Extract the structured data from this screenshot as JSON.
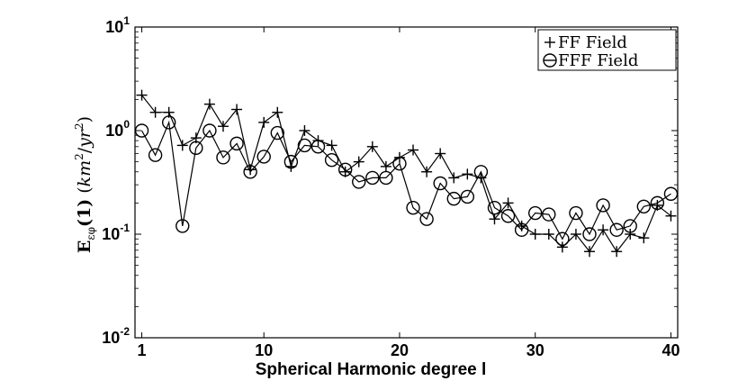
{
  "chart_data": {
    "type": "line",
    "xlabel": "Spherical Harmonic degree l",
    "ylabel": "E_{εφ}(1) (km²/yr²)",
    "ylabel_parts": {
      "E": "E",
      "sub": "ε",
      "sub_accent": "φ",
      "arg": "(1)",
      "unit_open": "(",
      "km": "km",
      "exp1": "2",
      "slash": "/",
      "yr": "yr",
      "exp2": "2",
      "unit_close": ")"
    },
    "xlim": [
      0.5,
      40.5
    ],
    "ylim": [
      0.01,
      10
    ],
    "yscale": "log",
    "xticks": [
      1,
      10,
      20,
      30,
      40
    ],
    "xtick_labels": [
      "1",
      "10",
      "20",
      "30",
      "40"
    ],
    "yticks": [
      0.01,
      0.1,
      1,
      10
    ],
    "ytick_labels": [
      {
        "base": "10",
        "exp": "-2"
      },
      {
        "base": "10",
        "exp": "-1"
      },
      {
        "base": "10",
        "exp": "0"
      },
      {
        "base": "10",
        "exp": "1"
      }
    ],
    "grid": false,
    "legend": "top-right",
    "x": [
      1,
      2,
      3,
      4,
      5,
      6,
      7,
      8,
      9,
      10,
      11,
      12,
      13,
      14,
      15,
      16,
      17,
      18,
      19,
      20,
      21,
      22,
      23,
      24,
      25,
      26,
      27,
      28,
      29,
      30,
      31,
      32,
      33,
      34,
      35,
      36,
      37,
      38,
      39,
      40
    ],
    "series": [
      {
        "name": "FF Field",
        "marker": "plus",
        "values": [
          2.2,
          1.5,
          1.5,
          0.72,
          0.85,
          1.8,
          1.1,
          1.6,
          0.42,
          1.2,
          1.5,
          0.45,
          1.0,
          0.8,
          0.72,
          0.4,
          0.5,
          0.7,
          0.45,
          0.55,
          0.65,
          0.4,
          0.6,
          0.35,
          0.38,
          0.35,
          0.14,
          0.2,
          0.12,
          0.1,
          0.1,
          0.075,
          0.1,
          0.068,
          0.11,
          0.068,
          0.1,
          0.092,
          0.19,
          0.15
        ]
      },
      {
        "name": "FFF Field",
        "marker": "circle",
        "values": [
          1.0,
          0.58,
          1.2,
          0.12,
          0.68,
          1.0,
          0.55,
          0.75,
          0.4,
          0.56,
          0.95,
          0.5,
          0.72,
          0.7,
          0.52,
          0.42,
          0.32,
          0.35,
          0.35,
          0.48,
          0.18,
          0.14,
          0.31,
          0.22,
          0.23,
          0.4,
          0.18,
          0.15,
          0.11,
          0.16,
          0.155,
          0.09,
          0.16,
          0.1,
          0.19,
          0.11,
          0.12,
          0.185,
          0.2,
          0.245
        ]
      }
    ]
  }
}
